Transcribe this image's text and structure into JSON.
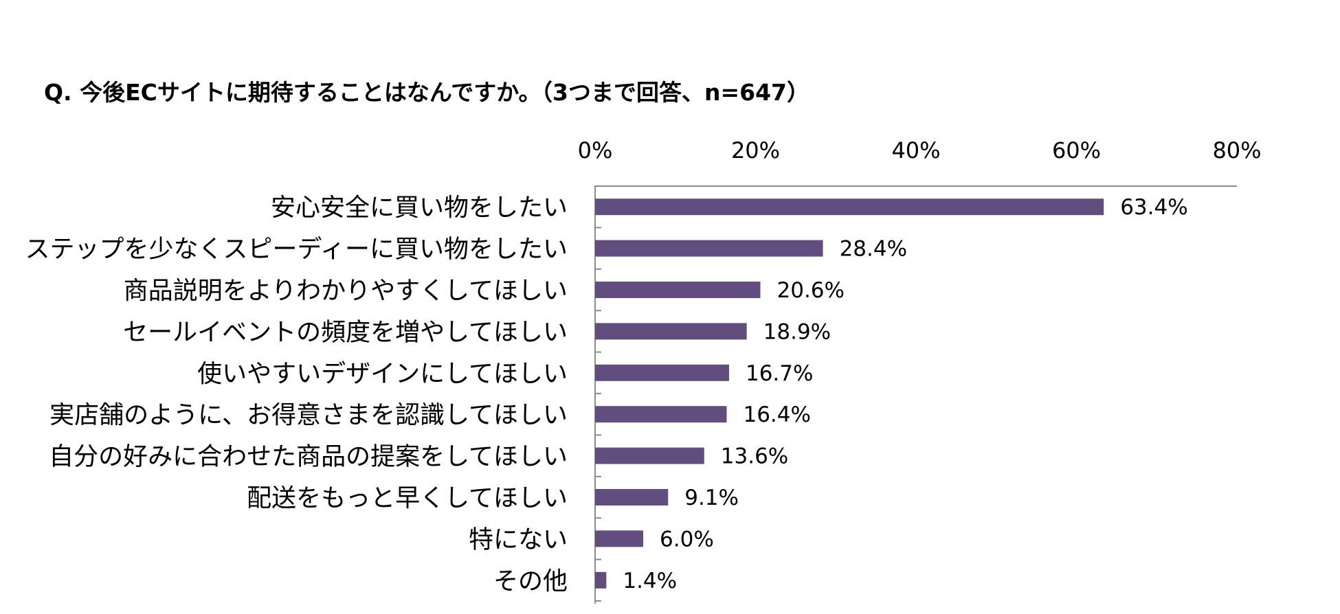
{
  "title": "Q. 今後ECサイトに期待することはなんですか。（3つまで回答、n=647）",
  "colors": {
    "bar": "#624E7E",
    "axis": "#8c8c8c"
  },
  "chart_data": {
    "type": "bar",
    "orientation": "horizontal",
    "title": "Q. 今後ECサイトに期待することはなんですか。（3つまで回答、n=647）",
    "categories": [
      "安心安全に買い物をしたい",
      "ステップを少なくスピーディーに買い物をしたい",
      "商品説明をよりわかりやすくしてほしい",
      "セールイベントの頻度を増やしてほしい",
      "使いやすいデザインにしてほしい",
      "実店舗のように、お得意さまを認識してほしい",
      "自分の好みに合わせた商品の提案をしてほしい",
      "配送をもっと早くしてほしい",
      "特にない",
      "その他"
    ],
    "values": [
      63.4,
      28.4,
      20.6,
      18.9,
      16.7,
      16.4,
      13.6,
      9.1,
      6.0,
      1.4
    ],
    "data_labels": [
      "63.4%",
      "28.4%",
      "20.6%",
      "18.9%",
      "16.7%",
      "16.4%",
      "13.6%",
      "9.1%",
      "6.0%",
      "1.4%"
    ],
    "xlim": [
      0,
      80
    ],
    "ticks": [
      0,
      20,
      40,
      60,
      80
    ],
    "tick_labels": [
      "0%",
      "20%",
      "40%",
      "60%",
      "80%"
    ],
    "axis_position": "top",
    "grid": false,
    "legend": "none"
  }
}
